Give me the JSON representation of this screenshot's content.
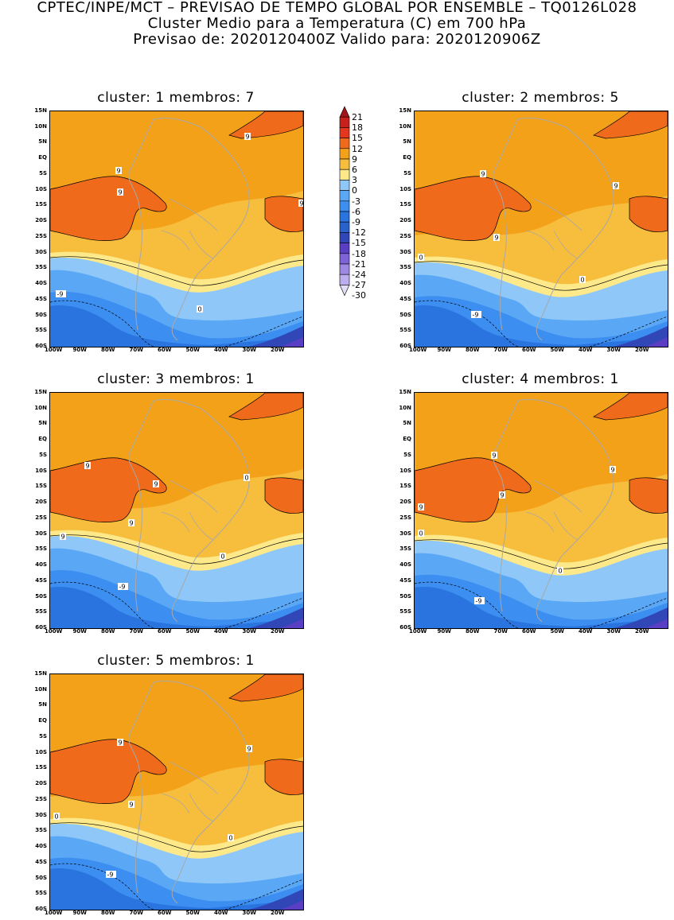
{
  "header": {
    "line1": "CPTEC/INPE/MCT – PREVISAO DE TEMPO GLOBAL POR ENSEMBLE – TQ0126L028",
    "line2": "Cluster Medio para a Temperatura (C) em 700 hPa",
    "line3": "Previsao de: 2020120400Z    Valido para: 2020120906Z"
  },
  "lat_labels": [
    "15N",
    "10N",
    "5N",
    "EQ",
    "5S",
    "10S",
    "15S",
    "20S",
    "25S",
    "30S",
    "35S",
    "40S",
    "45S",
    "50S",
    "55S",
    "60S"
  ],
  "lon_labels": [
    "100W",
    "90W",
    "80W",
    "70W",
    "60W",
    "50W",
    "40W",
    "30W",
    "20W"
  ],
  "colorbar": {
    "labels": [
      "21",
      "18",
      "15",
      "12",
      "9",
      "6",
      "3",
      "0",
      "-3",
      "-6",
      "-9",
      "-12",
      "-15",
      "-18",
      "-21",
      "-24",
      "-27",
      "-30"
    ],
    "colors": [
      "#a0161a",
      "#c8201c",
      "#e4371e",
      "#f06a1c",
      "#f4a11a",
      "#f7bd3d",
      "#fde98a",
      "#8ec7f8",
      "#5aa8f5",
      "#3c8ef0",
      "#2a74e0",
      "#2a62cc",
      "#3147b8",
      "#5a3fc4",
      "#7d62d8",
      "#9d88e4",
      "#bcaeee"
    ],
    "bottom_color": "#e2dcf6"
  },
  "panels": [
    {
      "title": "cluster: 1   membros: 7",
      "contour_labels": [
        "9",
        "9",
        "9",
        "9",
        "0",
        "-9"
      ]
    },
    {
      "title": "cluster: 2   membros: 5",
      "contour_labels": [
        "9",
        "9",
        "9",
        "0",
        "0",
        "-9"
      ]
    },
    {
      "title": "cluster: 3   membros: 1",
      "contour_labels": [
        "9",
        "9",
        "9",
        "9",
        "0",
        "0",
        "-9"
      ]
    },
    {
      "title": "cluster: 4   membros: 1",
      "contour_labels": [
        "9",
        "9",
        "9",
        "9",
        "0",
        "0",
        "-9"
      ]
    },
    {
      "title": "cluster: 5   membros: 1",
      "contour_labels": [
        "9",
        "9",
        "9",
        "0",
        "0",
        "-9"
      ]
    }
  ]
}
